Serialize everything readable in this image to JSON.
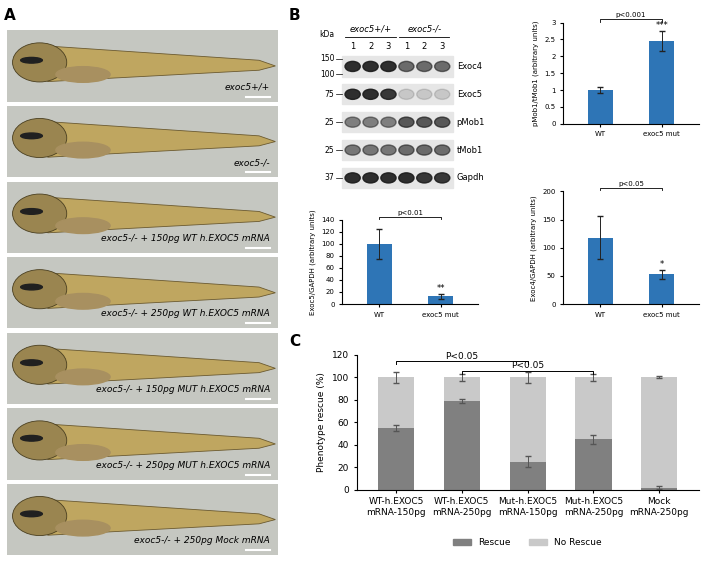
{
  "panel_labels": [
    "A",
    "B",
    "C"
  ],
  "panel_A": {
    "images": [
      "exoc5+/+",
      "exoc5-/-",
      "exoc5-/- + 150pg WT h.EXOC5 mRNA",
      "exoc5-/- + 250pg WT h.EXOC5 mRNA",
      "exoc5-/- + 150pg MUT h.EXOC5 mRNA",
      "exoc5-/- + 250pg MUT h.EXOC5 mRNA",
      "exoc5-/- + 250pg Mock mRNA"
    ]
  },
  "panel_B_blot": {
    "unit_label": "kDa",
    "groups": [
      "exoc5+/+",
      "exoc5-/-"
    ],
    "lanes": [
      "1",
      "2",
      "3",
      "1",
      "2",
      "3"
    ],
    "bands": [
      "Exoc4",
      "Exoc5",
      "pMob1",
      "tMob1",
      "Gapdh"
    ],
    "markers": [
      150,
      100,
      75,
      25,
      25,
      37
    ]
  },
  "chart_data": [
    {
      "type": "bar",
      "categories": [
        "WT",
        "exoc5 mut"
      ],
      "values": [
        1,
        2.45
      ],
      "errors": [
        0.1,
        0.3
      ],
      "color": "#2e75b6",
      "y_label": "pMob1/tMob1 (arbitrary units)",
      "ylim": [
        0,
        3
      ],
      "yticks": [
        0,
        0.5,
        1,
        1.5,
        2,
        2.5,
        3
      ],
      "comparison": {
        "label": "p<0.001",
        "stars": "***"
      }
    },
    {
      "type": "bar",
      "categories": [
        "WT",
        "exoc5 mut"
      ],
      "values": [
        100,
        13
      ],
      "errors": [
        25,
        4
      ],
      "color": "#2e75b6",
      "y_label": "Exoc5/GAPDH (arbitrary units)",
      "ylim": [
        0,
        140
      ],
      "yticks": [
        0,
        20,
        40,
        60,
        80,
        100,
        120,
        140
      ],
      "comparison": {
        "label": "p<0.01",
        "stars": "**"
      }
    },
    {
      "type": "bar",
      "categories": [
        "WT",
        "exoc5 mut"
      ],
      "values": [
        118,
        53
      ],
      "errors": [
        38,
        8
      ],
      "color": "#2e75b6",
      "y_label": "Exoc4/GAPDH (arbitrary units)",
      "ylim": [
        0,
        200
      ],
      "yticks": [
        0,
        50,
        100,
        150,
        200
      ],
      "comparison": {
        "label": "p<0.05",
        "stars": "*"
      }
    },
    {
      "type": "bar",
      "stacked": true,
      "categories": [
        "WT-h.EXOC5 mRNA-150pg",
        "WT-h.EXOC5 mRNA-250pg",
        "Mut-h.EXOC5 mRNA-150pg",
        "Mut-h.EXOC5 mRNA-250pg",
        "Mock mRNA-250pg"
      ],
      "series": [
        {
          "name": "Rescue",
          "color": "#808080",
          "values": [
            55,
            79,
            25,
            45,
            2
          ],
          "errors": [
            3,
            2,
            5,
            4,
            1
          ]
        },
        {
          "name": "No Rescue",
          "color": "#c9c9c9",
          "values": [
            45,
            21,
            75,
            55,
            98
          ],
          "errors": [
            5,
            3,
            5,
            3,
            1
          ]
        }
      ],
      "y_label": "Phenotype rescue (%)",
      "ylim": [
        0,
        120
      ],
      "yticks": [
        0,
        20,
        40,
        60,
        80,
        100,
        120
      ],
      "legend": "bottom",
      "comparisons": [
        {
          "between": [
            "WT-h.EXOC5 mRNA-150pg",
            "Mut-h.EXOC5 mRNA-150pg"
          ],
          "label": "P<0.05"
        },
        {
          "between": [
            "WT-h.EXOC5 mRNA-250pg",
            "Mut-h.EXOC5 mRNA-250pg"
          ],
          "label": "P<0.05"
        }
      ]
    }
  ]
}
